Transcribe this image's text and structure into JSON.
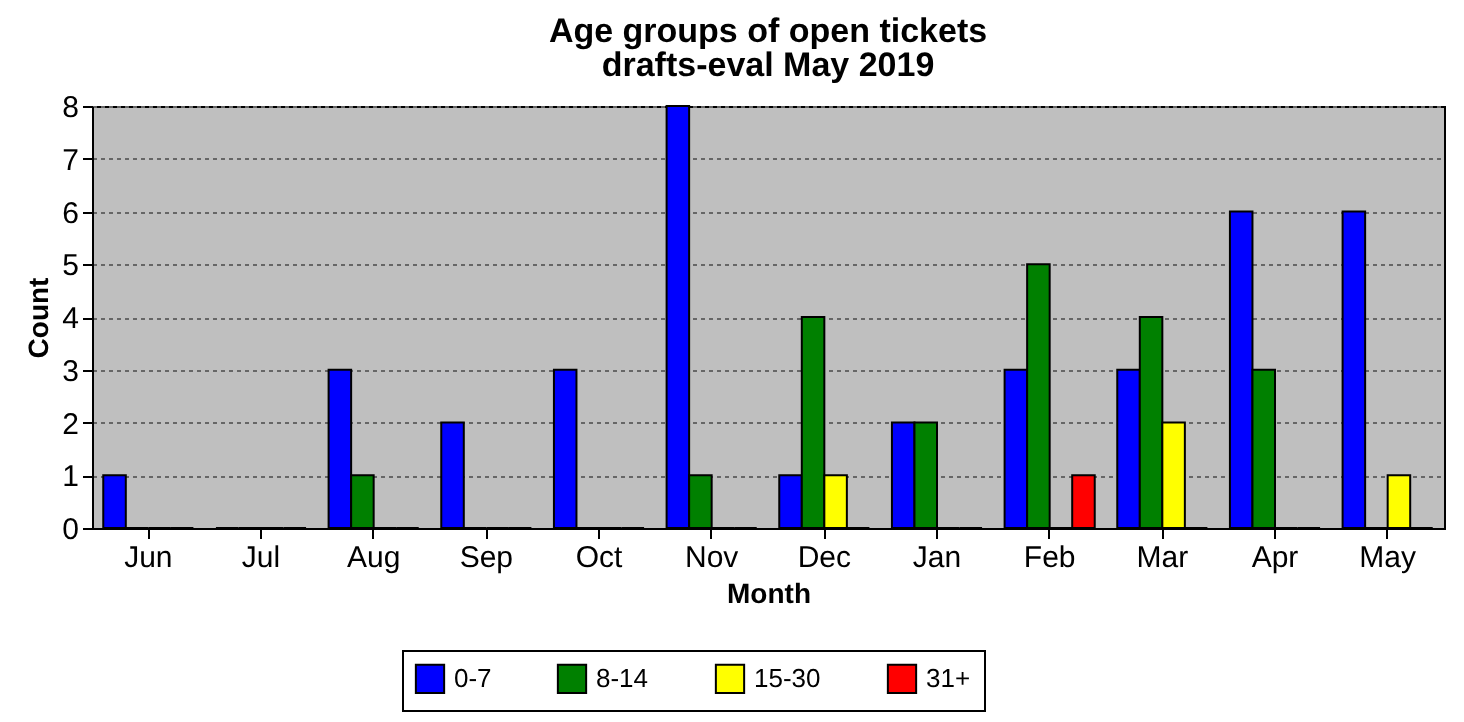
{
  "chart_data": {
    "type": "bar",
    "title": "Age groups of open tickets",
    "subtitle": "drafts-eval May 2019",
    "xlabel": "Month",
    "ylabel": "Count",
    "categories": [
      "Jun",
      "Jul",
      "Aug",
      "Sep",
      "Oct",
      "Nov",
      "Dec",
      "Jan",
      "Feb",
      "Mar",
      "Apr",
      "May"
    ],
    "series": [
      {
        "name": "0-7",
        "color": "#0000ff",
        "values": [
          1,
          0,
          3,
          2,
          3,
          8,
          1,
          2,
          3,
          3,
          6,
          6
        ]
      },
      {
        "name": "8-14",
        "color": "#008000",
        "values": [
          0,
          0,
          1,
          0,
          0,
          1,
          4,
          2,
          5,
          4,
          3,
          0
        ]
      },
      {
        "name": "15-30",
        "color": "#ffff00",
        "values": [
          0,
          0,
          0,
          0,
          0,
          0,
          1,
          0,
          0,
          2,
          0,
          1
        ]
      },
      {
        "name": "31+",
        "color": "#ff0000",
        "values": [
          0,
          0,
          0,
          0,
          0,
          0,
          0,
          0,
          1,
          0,
          0,
          0
        ]
      }
    ],
    "ylim": [
      0,
      8
    ],
    "yticks": [
      0,
      1,
      2,
      3,
      4,
      5,
      6,
      7,
      8
    ],
    "grid": "y",
    "legend": "bottom"
  }
}
